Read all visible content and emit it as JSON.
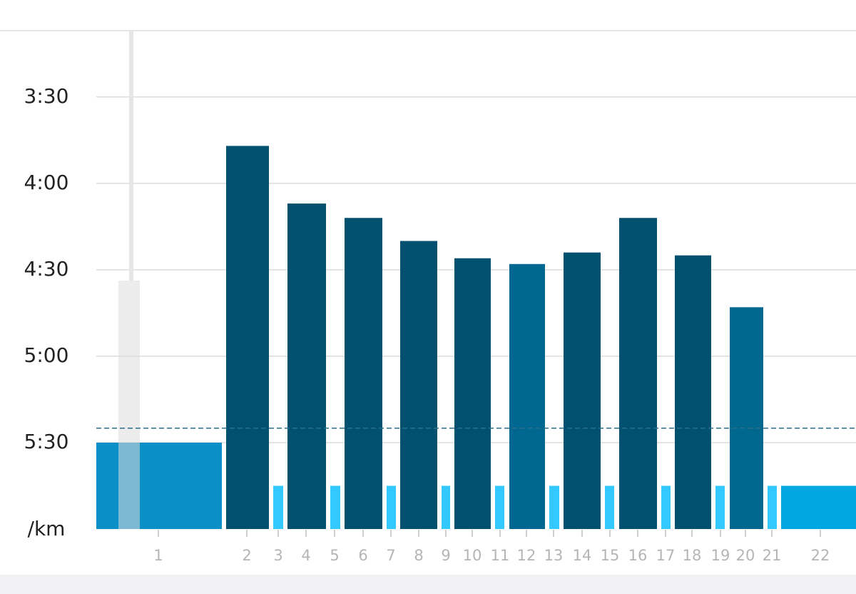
{
  "chart_data": {
    "type": "bar",
    "y_label": "/km",
    "categories": [
      "1",
      "2",
      "3",
      "4",
      "5",
      "6",
      "7",
      "8",
      "9",
      "10",
      "11",
      "12",
      "13",
      "14",
      "15",
      "16",
      "17",
      "18",
      "19",
      "20",
      "21",
      "22"
    ],
    "values": [
      330,
      227,
      345,
      247,
      345,
      252,
      345,
      260,
      345,
      266,
      345,
      268,
      345,
      264,
      345,
      252,
      345,
      265,
      345,
      283,
      345,
      345
    ],
    "colors": [
      "#0a8fc6",
      "#00506f",
      "#33c8ff",
      "#00506f",
      "#33c8ff",
      "#00506f",
      "#33c8ff",
      "#00506f",
      "#33c8ff",
      "#00506f",
      "#33c8ff",
      "#006890",
      "#33c8ff",
      "#00506f",
      "#33c8ff",
      "#00506f",
      "#33c8ff",
      "#00506f",
      "#33c8ff",
      "#00678f",
      "#33c8ff",
      "#00a7e1"
    ],
    "average": 325,
    "average_color": "#2a6f8a",
    "ylim": [
      187,
      360
    ],
    "y_inverted": true,
    "yticks": [
      {
        "value": 210,
        "label": "3:30"
      },
      {
        "value": 240,
        "label": "4:00"
      },
      {
        "value": 270,
        "label": "4:30"
      },
      {
        "value": 300,
        "label": "5:00"
      },
      {
        "value": 330,
        "label": "5:30"
      }
    ],
    "grid": true
  }
}
